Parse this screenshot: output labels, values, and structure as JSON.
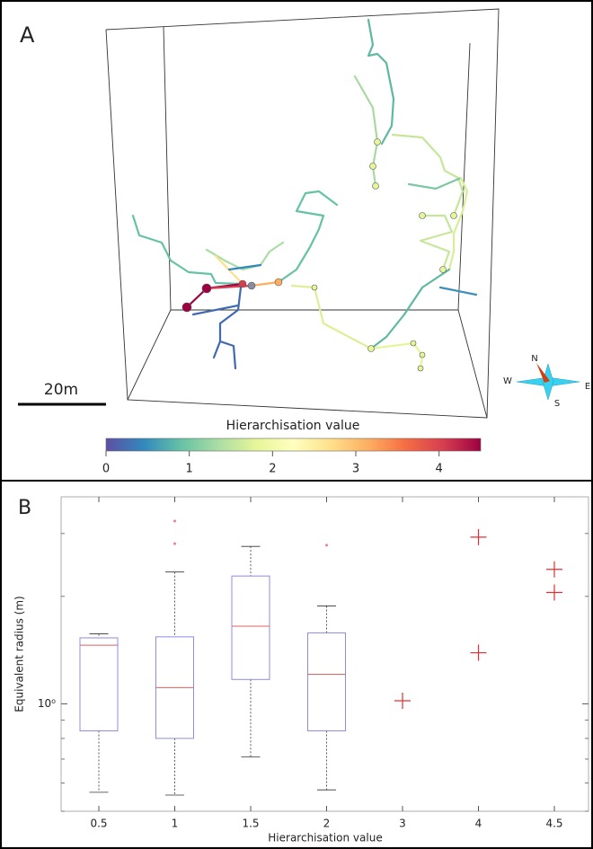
{
  "panel_a": {
    "label": "A",
    "scale_bar": "20m",
    "compass": {
      "n": "N",
      "w": "W",
      "e": "E",
      "s": "S"
    },
    "colorbar": {
      "label": "Hierarchisation value",
      "lim": [
        0,
        4.5
      ],
      "ticks": [
        0,
        1,
        2,
        3,
        4
      ],
      "colormap": [
        "#5e4fa2",
        "#3288bd",
        "#66c2a5",
        "#abdda4",
        "#e6f598",
        "#ffffbf",
        "#fee08b",
        "#fdae61",
        "#f46d43",
        "#d53e4f",
        "#9e0142"
      ]
    }
  },
  "chart_data": {
    "type": "box",
    "panel_label": "B",
    "x_label": "Hierarchisation value",
    "y_label": "Equivalent radius (m)",
    "log_y": true,
    "ylim": [
      0.5,
      3.8
    ],
    "yticks": [
      {
        "value": 1,
        "label": "10⁰"
      }
    ],
    "yminorticks": [
      0.5,
      0.6,
      0.7,
      0.8,
      0.9,
      2,
      3
    ],
    "box_color": "#8c8ce0",
    "median_color": "#e06060",
    "point_color": "#e03030",
    "groups": [
      {
        "category": "0.5",
        "box": {
          "min": 0.565,
          "q1": 0.84,
          "median": 1.46,
          "q3": 1.53,
          "max": 1.57
        },
        "outliers": []
      },
      {
        "category": "1",
        "box": {
          "min": 0.555,
          "q1": 0.8,
          "median": 1.11,
          "q3": 1.54,
          "max": 2.34
        },
        "outliers": [
          2.81,
          3.25
        ]
      },
      {
        "category": "1.5",
        "box": {
          "min": 0.71,
          "q1": 1.17,
          "median": 1.65,
          "q3": 2.28,
          "max": 2.76
        },
        "outliers": []
      },
      {
        "category": "2",
        "box": {
          "min": 0.574,
          "q1": 0.84,
          "median": 1.21,
          "q3": 1.58,
          "max": 1.88
        },
        "outliers": [
          2.78
        ]
      },
      {
        "category": "3",
        "points": [
          1.02
        ]
      },
      {
        "category": "4",
        "points": [
          2.93,
          1.39
        ]
      },
      {
        "category": "4.5",
        "points": [
          2.38,
          2.05
        ]
      }
    ]
  }
}
